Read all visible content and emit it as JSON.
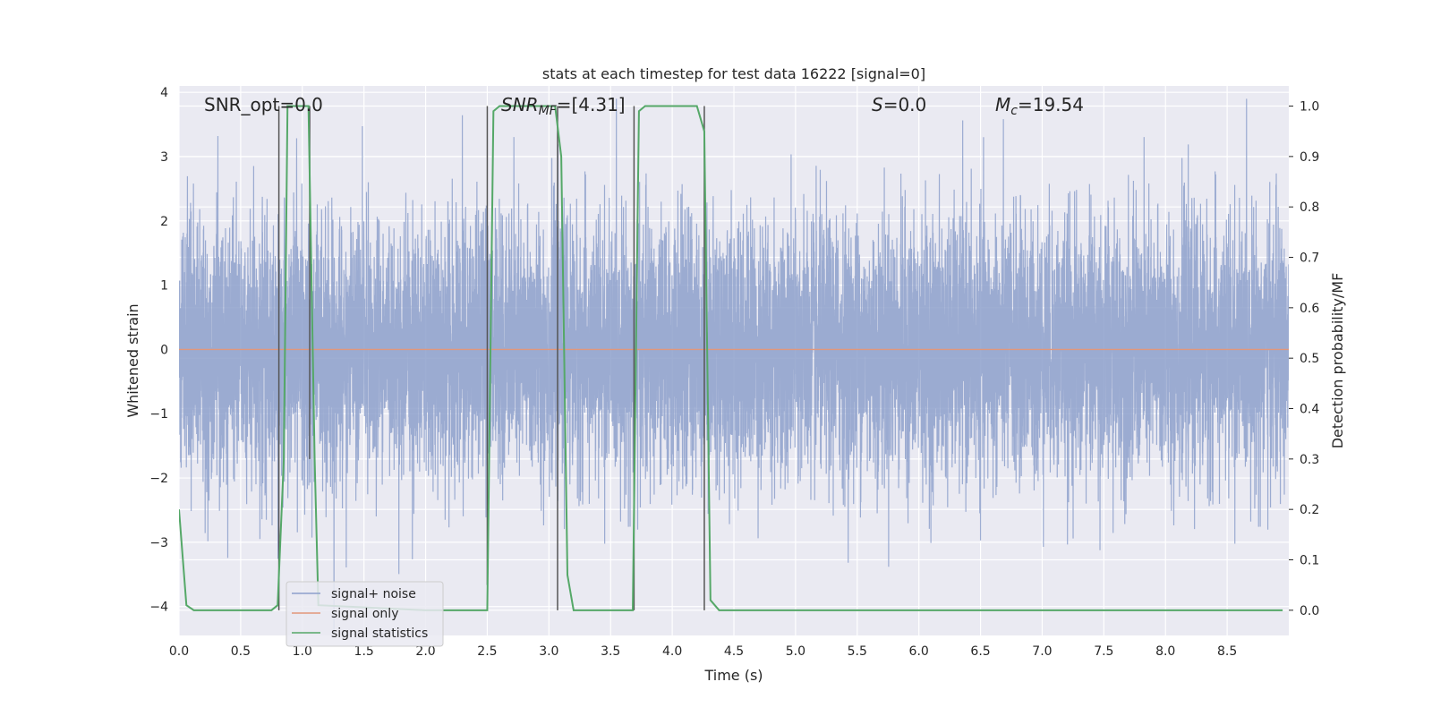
{
  "chart_data": {
    "type": "line",
    "title": "stats at each timestep for test data 16222 [signal=0]",
    "xlabel": "Time (s)",
    "ylabel": "Whitened strain",
    "y2label": "Detection probability/MF",
    "xlim": [
      0.0,
      9.0
    ],
    "ylim": [
      -4.45,
      4.1
    ],
    "y2lim": [
      -0.05,
      1.04
    ],
    "xticks": [
      0.0,
      0.5,
      1.0,
      1.5,
      2.0,
      2.5,
      3.0,
      3.5,
      4.0,
      4.5,
      5.0,
      5.5,
      6.0,
      6.5,
      7.0,
      7.5,
      8.0,
      8.5
    ],
    "xtick_labels": [
      "0.0",
      "0.5",
      "1.0",
      "1.5",
      "2.0",
      "2.5",
      "3.0",
      "3.5",
      "4.0",
      "4.5",
      "5.0",
      "5.5",
      "6.0",
      "6.5",
      "7.0",
      "7.5",
      "8.0",
      "8.5"
    ],
    "yticks": [
      -4,
      -3,
      -2,
      -1,
      0,
      1,
      2,
      3,
      4
    ],
    "ytick_labels": [
      "−4",
      "−3",
      "−2",
      "−1",
      "0",
      "1",
      "2",
      "3",
      "4"
    ],
    "y2ticks": [
      0.0,
      0.1,
      0.2,
      0.3,
      0.4,
      0.5,
      0.6,
      0.7,
      0.8,
      0.9,
      1.0
    ],
    "y2tick_labels": [
      "0.0",
      "0.1",
      "0.2",
      "0.3",
      "0.4",
      "0.5",
      "0.6",
      "0.7",
      "0.8",
      "0.9",
      "1.0"
    ],
    "grid": true,
    "legend_position": "lower-left",
    "annotations": {
      "snr_opt": "SNR_opt=0.0",
      "snr_mf_main": "SNR",
      "snr_mf_sub": "MF",
      "snr_mf_value": "=[4.31]",
      "s_main": "S",
      "s_value": "=0.0",
      "mc_main": "M",
      "mc_sub": "c",
      "mc_value": "=19.54"
    },
    "series": [
      {
        "name": "signal+ noise",
        "axis": "left",
        "color": "#8da0cb",
        "description_kind": "noise",
        "amplitude_sigma": 1.0,
        "duration_s": 9.0,
        "sample_rate": 1024
      },
      {
        "name": "signal only",
        "axis": "left",
        "color": "#e1977b",
        "x": [
          0.0,
          9.0
        ],
        "y": [
          0.0,
          0.0
        ]
      },
      {
        "name": "signal statistics",
        "axis": "right",
        "color": "#55a868",
        "x": [
          0.0,
          0.06,
          0.12,
          0.75,
          0.8,
          0.85,
          0.88,
          1.05,
          1.1,
          1.13,
          2.0,
          2.5,
          2.55,
          2.6,
          3.05,
          3.1,
          3.15,
          3.2,
          3.68,
          3.73,
          3.78,
          4.2,
          4.26,
          4.31,
          4.38,
          8.95
        ],
        "y": [
          0.2,
          0.01,
          0.0,
          0.0,
          0.01,
          0.3,
          1.0,
          1.0,
          0.3,
          0.01,
          0.0,
          0.0,
          0.99,
          1.0,
          1.0,
          0.9,
          0.07,
          0.0,
          0.0,
          0.99,
          1.0,
          1.0,
          0.95,
          0.02,
          0.0,
          0.0
        ]
      }
    ],
    "markers": {
      "color": "#555555",
      "segments": [
        {
          "x": 0.81,
          "y_top": 1.0,
          "y_bottom": 0.0
        },
        {
          "x": 1.06,
          "y_top": 1.0,
          "y_bottom": 0.3
        },
        {
          "x": 2.5,
          "y_top": 1.0,
          "y_bottom": 0.05
        },
        {
          "x": 3.07,
          "y_top": 1.0,
          "y_bottom": 0.0
        },
        {
          "x": 3.69,
          "y_top": 1.0,
          "y_bottom": 0.0
        },
        {
          "x": 4.26,
          "y_top": 1.0,
          "y_bottom": 0.0
        }
      ]
    }
  }
}
